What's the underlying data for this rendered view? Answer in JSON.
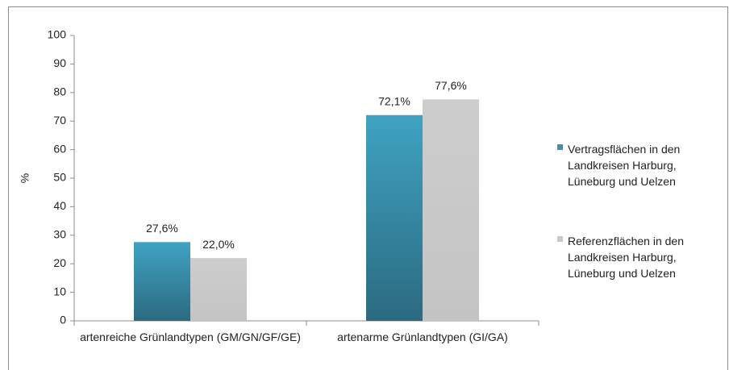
{
  "chart_data": {
    "type": "bar",
    "categories": [
      "artenreiche Grünlandtypen (GM/GN/GF/GE)",
      "artenarme Grünlandtypen (GI/GA)"
    ],
    "series": [
      {
        "name": "Vertragsflächen in den Landkreisen Harburg, Lüneburg und Uelzen",
        "color": "#3a93b1",
        "values": [
          27.6,
          72.1
        ],
        "value_labels": [
          "27,6%",
          "72,1%"
        ]
      },
      {
        "name": "Referenzflächen in den Landkreisen Harburg, Lüneburg und Uelzen",
        "color": "#c9c9c9",
        "values": [
          22.0,
          77.6
        ],
        "value_labels": [
          "22,0%",
          "77,6%"
        ]
      }
    ],
    "y_label": "%",
    "ylim": [
      0,
      100
    ],
    "yticks": [
      0,
      10,
      20,
      30,
      40,
      50,
      60,
      70,
      80,
      90,
      100
    ],
    "grid": false,
    "legend": "right"
  }
}
